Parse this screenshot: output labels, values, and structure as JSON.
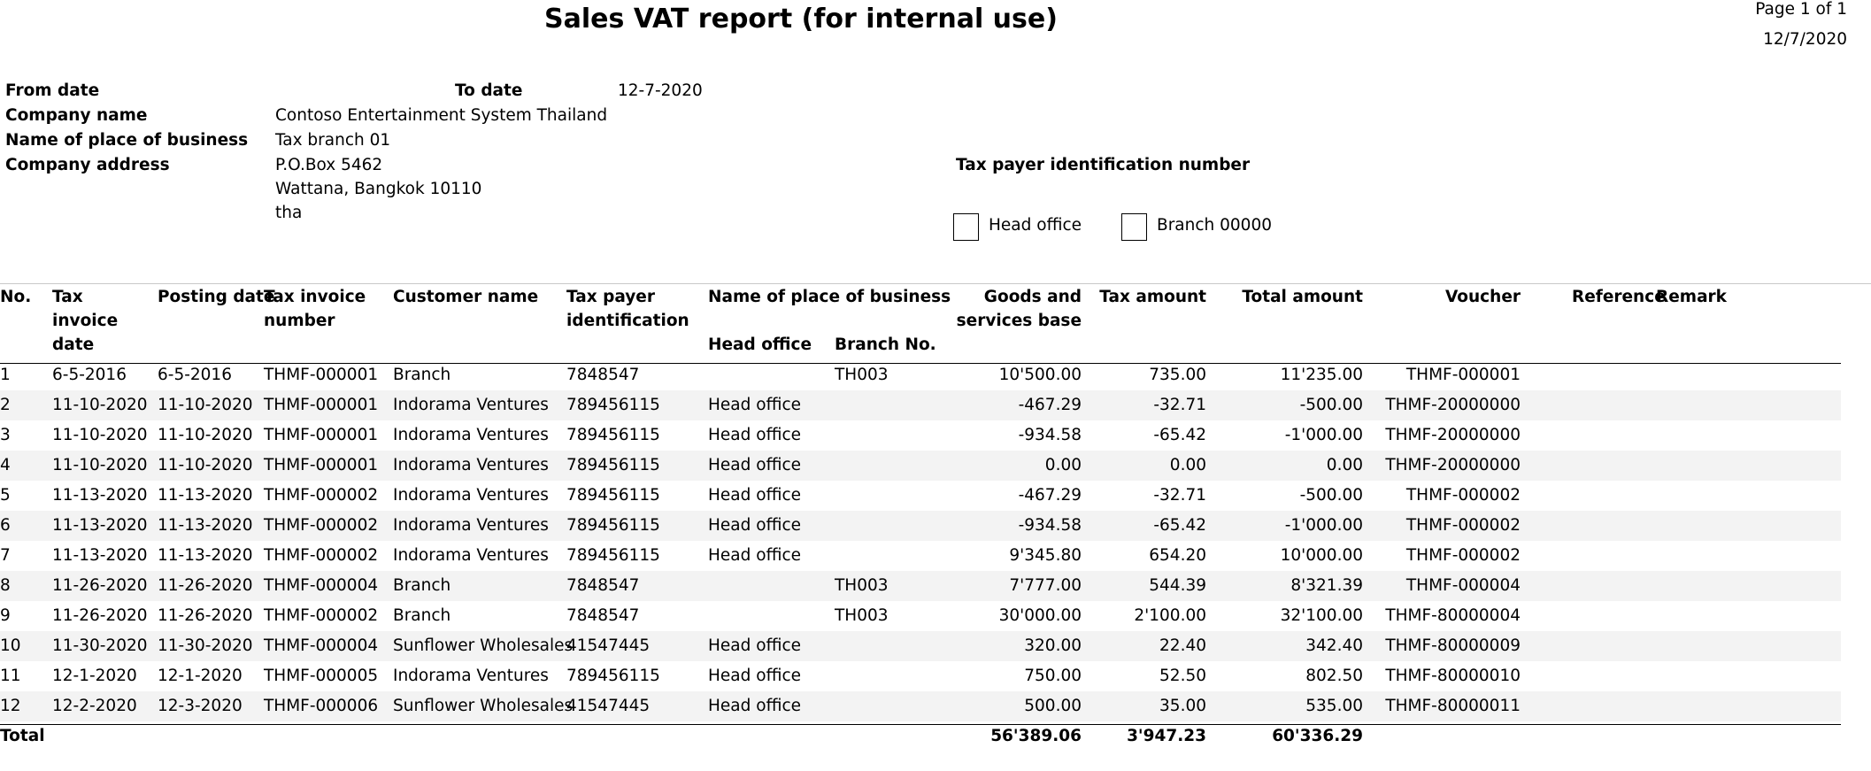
{
  "header": {
    "title": "Sales VAT report (for internal use)",
    "page": "Page 1 of 1",
    "print_date": "12/7/2020",
    "from_date_label": "From date",
    "to_date_label": "To date",
    "to_date_value": "12-7-2020",
    "company_name_label": "Company name",
    "company_name_value": "Contoso Entertainment System Thailand",
    "place_label": "Name of place of business",
    "place_value": "Tax branch 01",
    "address_label": "Company address",
    "address_lines": [
      "P.O.Box 5462",
      "Wattana, Bangkok 10110",
      "tha"
    ],
    "taxpayer_label": "Tax payer identification number",
    "head_office_option": "Head office",
    "branch_option": "Branch 00000"
  },
  "table": {
    "columns": {
      "no": "No.",
      "tax_invoice_date": "Tax invoice date",
      "posting_date": "Posting date",
      "tax_invoice_number": "Tax invoice number",
      "customer_name": "Customer name",
      "tax_payer_id": "Tax payer identification",
      "place_group": "Name of place of business",
      "head_office": "Head office",
      "branch_no": "Branch No.",
      "goods_base": "Goods and services base",
      "tax_amount": "Tax amount",
      "total_amount": "Total amount",
      "voucher": "Voucher",
      "reference": "Reference",
      "remark": "Remark"
    },
    "rows": [
      {
        "no": "1",
        "tax_date": "6-5-2016",
        "posting_date": "6-5-2016",
        "invoice": "THMF-000001",
        "customer": "Branch",
        "taxpayer_id": "7848547",
        "head_office": "",
        "branch_no": "TH003",
        "goods_base": "10'500.00",
        "tax": "735.00",
        "total": "11'235.00",
        "voucher": "THMF-000001"
      },
      {
        "no": "2",
        "tax_date": "11-10-2020",
        "posting_date": "11-10-2020",
        "invoice": "THMF-000001",
        "customer": "Indorama Ventures",
        "taxpayer_id": "789456115",
        "head_office": "Head office",
        "branch_no": "",
        "goods_base": "-467.29",
        "tax": "-32.71",
        "total": "-500.00",
        "voucher": "THMF-20000000"
      },
      {
        "no": "3",
        "tax_date": "11-10-2020",
        "posting_date": "11-10-2020",
        "invoice": "THMF-000001",
        "customer": "Indorama Ventures",
        "taxpayer_id": "789456115",
        "head_office": "Head office",
        "branch_no": "",
        "goods_base": "-934.58",
        "tax": "-65.42",
        "total": "-1'000.00",
        "voucher": "THMF-20000000"
      },
      {
        "no": "4",
        "tax_date": "11-10-2020",
        "posting_date": "11-10-2020",
        "invoice": "THMF-000001",
        "customer": "Indorama Ventures",
        "taxpayer_id": "789456115",
        "head_office": "Head office",
        "branch_no": "",
        "goods_base": "0.00",
        "tax": "0.00",
        "total": "0.00",
        "voucher": "THMF-20000000"
      },
      {
        "no": "5",
        "tax_date": "11-13-2020",
        "posting_date": "11-13-2020",
        "invoice": "THMF-000002",
        "customer": "Indorama Ventures",
        "taxpayer_id": "789456115",
        "head_office": "Head office",
        "branch_no": "",
        "goods_base": "-467.29",
        "tax": "-32.71",
        "total": "-500.00",
        "voucher": "THMF-000002"
      },
      {
        "no": "6",
        "tax_date": "11-13-2020",
        "posting_date": "11-13-2020",
        "invoice": "THMF-000002",
        "customer": "Indorama Ventures",
        "taxpayer_id": "789456115",
        "head_office": "Head office",
        "branch_no": "",
        "goods_base": "-934.58",
        "tax": "-65.42",
        "total": "-1'000.00",
        "voucher": "THMF-000002"
      },
      {
        "no": "7",
        "tax_date": "11-13-2020",
        "posting_date": "11-13-2020",
        "invoice": "THMF-000002",
        "customer": "Indorama Ventures",
        "taxpayer_id": "789456115",
        "head_office": "Head office",
        "branch_no": "",
        "goods_base": "9'345.80",
        "tax": "654.20",
        "total": "10'000.00",
        "voucher": "THMF-000002"
      },
      {
        "no": "8",
        "tax_date": "11-26-2020",
        "posting_date": "11-26-2020",
        "invoice": "THMF-000004",
        "customer": "Branch",
        "taxpayer_id": "7848547",
        "head_office": "",
        "branch_no": "TH003",
        "goods_base": "7'777.00",
        "tax": "544.39",
        "total": "8'321.39",
        "voucher": "THMF-000004"
      },
      {
        "no": "9",
        "tax_date": "11-26-2020",
        "posting_date": "11-26-2020",
        "invoice": "THMF-000002",
        "customer": "Branch",
        "taxpayer_id": "7848547",
        "head_office": "",
        "branch_no": "TH003",
        "goods_base": "30'000.00",
        "tax": "2'100.00",
        "total": "32'100.00",
        "voucher": "THMF-80000004"
      },
      {
        "no": "10",
        "tax_date": "11-30-2020",
        "posting_date": "11-30-2020",
        "invoice": "THMF-000004",
        "customer": "Sunflower Wholesales",
        "taxpayer_id": "41547445",
        "head_office": "Head office",
        "branch_no": "",
        "goods_base": "320.00",
        "tax": "22.40",
        "total": "342.40",
        "voucher": "THMF-80000009"
      },
      {
        "no": "11",
        "tax_date": "12-1-2020",
        "posting_date": "12-1-2020",
        "invoice": "THMF-000005",
        "customer": "Indorama Ventures",
        "taxpayer_id": "789456115",
        "head_office": "Head office",
        "branch_no": "",
        "goods_base": "750.00",
        "tax": "52.50",
        "total": "802.50",
        "voucher": "THMF-80000010"
      },
      {
        "no": "12",
        "tax_date": "12-2-2020",
        "posting_date": "12-3-2020",
        "invoice": "THMF-000006",
        "customer": "Sunflower Wholesales",
        "taxpayer_id": "41547445",
        "head_office": "Head office",
        "branch_no": "",
        "goods_base": "500.00",
        "tax": "35.00",
        "total": "535.00",
        "voucher": "THMF-80000011"
      }
    ],
    "total": {
      "label": "Total",
      "goods_base": "56'389.06",
      "tax": "3'947.23",
      "total": "60'336.29"
    }
  }
}
